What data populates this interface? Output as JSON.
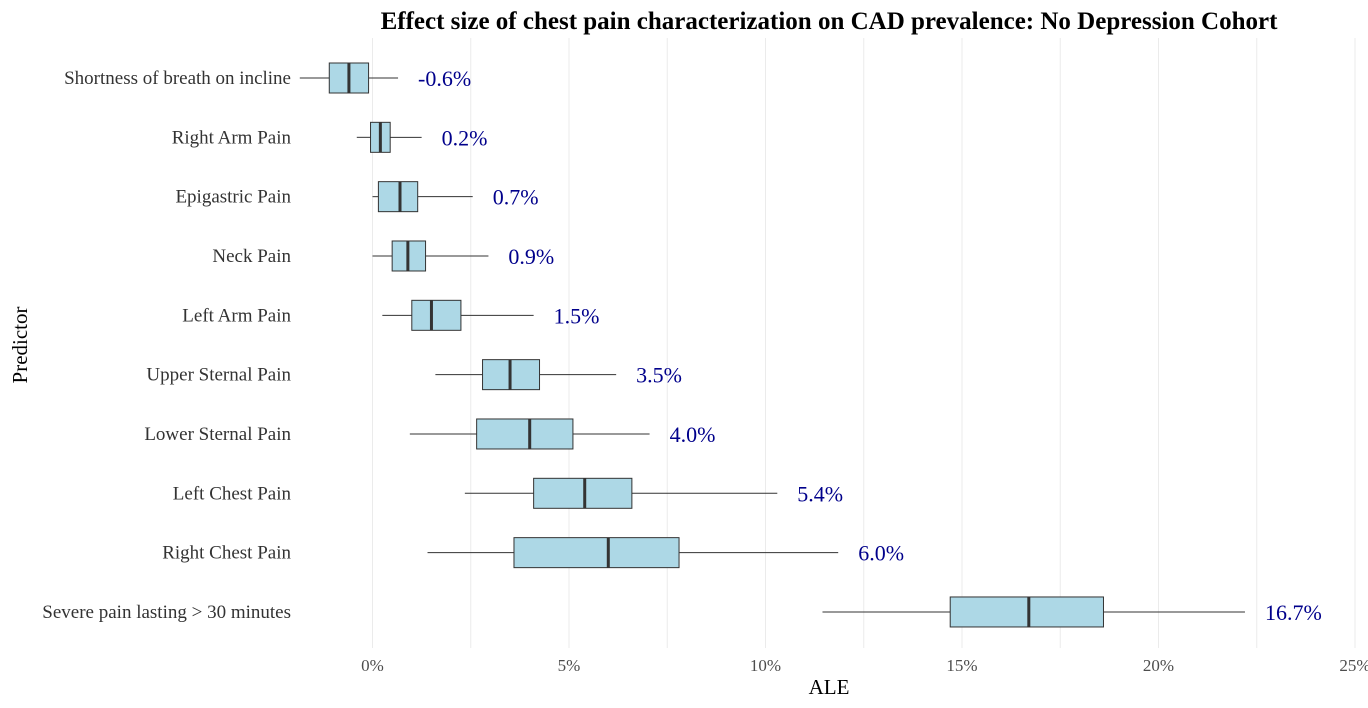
{
  "chart_data": {
    "type": "boxplot",
    "title": "Effect size of chest pain characterization on CAD prevalence: No Depression Cohort",
    "xlabel": "ALE",
    "ylabel": "Predictor",
    "xlim": [
      -3.0,
      25.0
    ],
    "x_ticks": [
      0,
      5,
      10,
      15,
      20,
      25
    ],
    "x_tick_labels": [
      "0%",
      "5%",
      "10%",
      "15%",
      "20%",
      "25%"
    ],
    "grid": "vertical",
    "box_color": "#add8e6",
    "label_color": "#00008b",
    "categories": [
      "Shortness of breath on incline",
      "Right Arm Pain",
      "Epigastric Pain",
      "Neck Pain",
      "Left Arm Pain",
      "Upper Sternal Pain",
      "Lower Sternal Pain",
      "Left Chest Pain",
      "Right Chest Pain",
      "Severe pain lasting > 30 minutes"
    ],
    "boxes": [
      {
        "whisker_low": -1.85,
        "q1": -1.1,
        "median": -0.6,
        "q3": -0.1,
        "whisker_high": 0.65
      },
      {
        "whisker_low": -0.4,
        "q1": -0.05,
        "median": 0.2,
        "q3": 0.45,
        "whisker_high": 1.25
      },
      {
        "whisker_low": 0.0,
        "q1": 0.15,
        "median": 0.7,
        "q3": 1.15,
        "whisker_high": 2.55
      },
      {
        "whisker_low": 0.0,
        "q1": 0.5,
        "median": 0.9,
        "q3": 1.35,
        "whisker_high": 2.95
      },
      {
        "whisker_low": 0.25,
        "q1": 1.0,
        "median": 1.5,
        "q3": 2.25,
        "whisker_high": 4.1
      },
      {
        "whisker_low": 1.6,
        "q1": 2.8,
        "median": 3.5,
        "q3": 4.25,
        "whisker_high": 6.2
      },
      {
        "whisker_low": 0.95,
        "q1": 2.65,
        "median": 4.0,
        "q3": 5.1,
        "whisker_high": 7.05
      },
      {
        "whisker_low": 2.35,
        "q1": 4.1,
        "median": 5.4,
        "q3": 6.6,
        "whisker_high": 10.3
      },
      {
        "whisker_low": 1.4,
        "q1": 3.6,
        "median": 6.0,
        "q3": 7.8,
        "whisker_high": 11.85
      },
      {
        "whisker_low": 11.45,
        "q1": 14.7,
        "median": 16.7,
        "q3": 18.6,
        "whisker_high": 22.2
      }
    ],
    "value_labels": [
      "-0.6%",
      "0.2%",
      "0.7%",
      "0.9%",
      "1.5%",
      "3.5%",
      "4.0%",
      "5.4%",
      "6.0%",
      "16.7%"
    ]
  }
}
